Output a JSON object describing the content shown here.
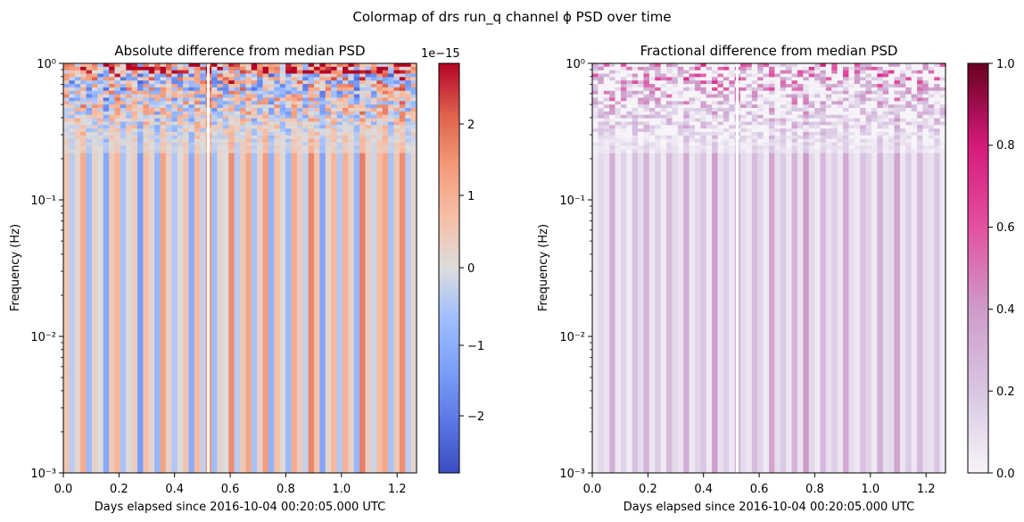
{
  "figure": {
    "suptitle": "Colormap of drs run_q channel ϕ PSD over time"
  },
  "chart_data": [
    {
      "type": "heatmap",
      "title": "Absolute difference from median PSD",
      "xlabel": "Days elapsed since 2016-10-04 00:20:05.000 UTC",
      "ylabel": "Frequency (Hz)",
      "xlim": [
        0.0,
        1.27
      ],
      "ylim": [
        0.001,
        1.0
      ],
      "yscale": "log",
      "x_ticks": [
        "0.0",
        "0.2",
        "0.4",
        "0.6",
        "0.8",
        "1.0",
        "1.2"
      ],
      "y_ticks": [
        "10⁻³",
        "10⁻²",
        "10⁻¹",
        "10⁰"
      ],
      "colormap": "coolwarm",
      "colorbar": {
        "range": [
          -2.9,
          2.9
        ],
        "ticks": [
          "−2",
          "−1",
          "0",
          "1",
          "2"
        ],
        "offset_text": "1e−15"
      },
      "gap_at_days": 0.52,
      "stripe_values": [
        0.6,
        -0.4,
        0.2,
        1.1,
        -0.8,
        0.3,
        0.0,
        -1.2,
        0.5,
        0.9,
        -0.6,
        0.1,
        0.4,
        -1.5,
        0.7,
        0.2,
        -0.9,
        1.3,
        0.3,
        -0.5,
        0.0,
        0.6,
        -1.1,
        0.8,
        -0.3,
        1.5,
        -0.7,
        0.2,
        0.0,
        1.6,
        -0.4,
        0.5,
        1.2,
        -0.6,
        0.3,
        1.4,
        -1.0,
        0.7,
        0.1,
        -0.8,
        1.1,
        0.4,
        -0.3,
        1.7,
        0.6,
        -1.3,
        0.2,
        0.9,
        -0.5,
        1.0,
        0.3,
        -0.9,
        1.8,
        0.4,
        -0.2,
        0.8,
        1.2,
        -0.6,
        0.5,
        1.6,
        -0.4,
        0.2
      ]
    },
    {
      "type": "heatmap",
      "title": "Fractional difference from median PSD",
      "xlabel": "Days elapsed since 2016-10-04 00:20:05.000 UTC",
      "ylabel": "Frequency (Hz)",
      "xlim": [
        0.0,
        1.27
      ],
      "ylim": [
        0.001,
        1.0
      ],
      "yscale": "log",
      "x_ticks": [
        "0.0",
        "0.2",
        "0.4",
        "0.6",
        "0.8",
        "1.0",
        "1.2"
      ],
      "y_ticks": [
        "10⁻³",
        "10⁻²",
        "10⁻¹",
        "10⁰"
      ],
      "colormap": "PuRd",
      "colorbar": {
        "range": [
          0.0,
          1.0
        ],
        "ticks": [
          "0.0",
          "0.2",
          "0.4",
          "0.6",
          "0.8",
          "1.0"
        ]
      },
      "gap_at_days": 0.49,
      "stripe_values": [
        0.05,
        0.12,
        0.08,
        0.3,
        0.06,
        0.15,
        0.04,
        0.22,
        0.1,
        0.28,
        0.07,
        0.18,
        0.05,
        0.25,
        0.12,
        0.08,
        0.32,
        0.06,
        0.14,
        0.2,
        0.05,
        0.38,
        0.09,
        0.16,
        0.06,
        0.3,
        0.11,
        0.07,
        0.24,
        0.13,
        0.05,
        0.35,
        0.1,
        0.18,
        0.06,
        0.28,
        0.08,
        0.4,
        0.12,
        0.05,
        0.26,
        0.09,
        0.16,
        0.07,
        0.33,
        0.1,
        0.06,
        0.22,
        0.14,
        0.05,
        0.3,
        0.09,
        0.12,
        0.36,
        0.07,
        0.18,
        0.06,
        0.25,
        0.1,
        0.08,
        0.2,
        0.06
      ]
    }
  ]
}
